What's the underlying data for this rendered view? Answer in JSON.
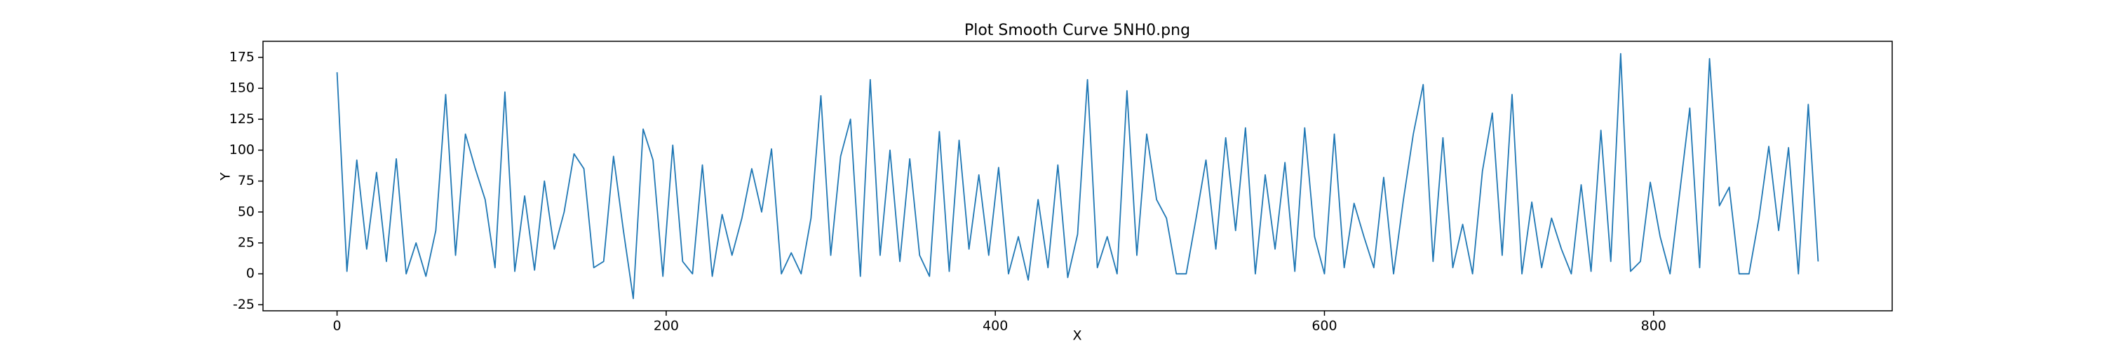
{
  "chart_data": {
    "type": "line",
    "title": "Plot Smooth Curve 5NH0.png",
    "x_label": "X",
    "y_label": "Y",
    "color": "#1f77b4",
    "grid": false,
    "x": [
      0,
      6,
      12,
      18,
      24,
      30,
      36,
      42,
      48,
      54,
      60,
      66,
      72,
      78,
      84,
      90,
      96,
      102,
      108,
      114,
      120,
      126,
      132,
      138,
      144,
      150,
      156,
      162,
      168,
      174,
      180,
      186,
      192,
      198,
      204,
      210,
      216,
      222,
      228,
      234,
      240,
      246,
      252,
      258,
      264,
      270,
      276,
      282,
      288,
      294,
      300,
      306,
      312,
      318,
      324,
      330,
      336,
      342,
      348,
      354,
      360,
      366,
      372,
      378,
      384,
      390,
      396,
      402,
      408,
      414,
      420,
      426,
      432,
      438,
      444,
      450,
      456,
      462,
      468,
      474,
      480,
      486,
      492,
      498,
      504,
      510,
      516,
      522,
      528,
      534,
      540,
      546,
      552,
      558,
      564,
      570,
      576,
      582,
      588,
      594,
      600,
      606,
      612,
      618,
      624,
      630,
      636,
      642,
      648,
      654,
      660,
      666,
      672,
      678,
      684,
      690,
      696,
      702,
      708,
      714,
      720,
      726,
      732,
      738,
      744,
      750,
      756,
      762,
      768,
      774,
      780,
      786,
      792,
      798,
      804,
      810,
      816,
      822,
      828,
      834,
      840,
      846,
      852,
      858,
      864,
      870,
      876,
      882,
      888,
      894,
      900
    ],
    "values": [
      163,
      2,
      92,
      20,
      82,
      10,
      93,
      0,
      25,
      -2,
      35,
      145,
      15,
      113,
      85,
      60,
      5,
      147,
      2,
      63,
      3,
      75,
      20,
      50,
      97,
      85,
      5,
      10,
      95,
      35,
      -20,
      117,
      92,
      -2,
      104,
      10,
      0,
      88,
      -2,
      48,
      15,
      45,
      85,
      50,
      101,
      0,
      17,
      0,
      45,
      144,
      15,
      95,
      125,
      -2,
      157,
      15,
      100,
      10,
      93,
      15,
      -2,
      115,
      2,
      108,
      20,
      80,
      15,
      86,
      0,
      30,
      -5,
      60,
      5,
      88,
      -3,
      32,
      157,
      5,
      30,
      0,
      148,
      15,
      113,
      60,
      45,
      0,
      0,
      45,
      92,
      20,
      110,
      35,
      118,
      0,
      80,
      20,
      90,
      2,
      118,
      30,
      0,
      113,
      5,
      57,
      30,
      5,
      78,
      0,
      60,
      113,
      153,
      10,
      110,
      5,
      40,
      0,
      83,
      130,
      15,
      145,
      0,
      58,
      5,
      45,
      20,
      0,
      72,
      2,
      116,
      10,
      178,
      2,
      10,
      74,
      30,
      0,
      67,
      134,
      5,
      174,
      55,
      70,
      0,
      0,
      45,
      103,
      35,
      102,
      0,
      137,
      10
    ],
    "xlim": [
      -45,
      945
    ],
    "xticks": [
      0,
      200,
      400,
      600,
      800
    ],
    "ylim": [
      -29.9,
      188
    ],
    "yticks": [
      -25,
      0,
      25,
      50,
      75,
      100,
      125,
      150,
      175
    ]
  }
}
